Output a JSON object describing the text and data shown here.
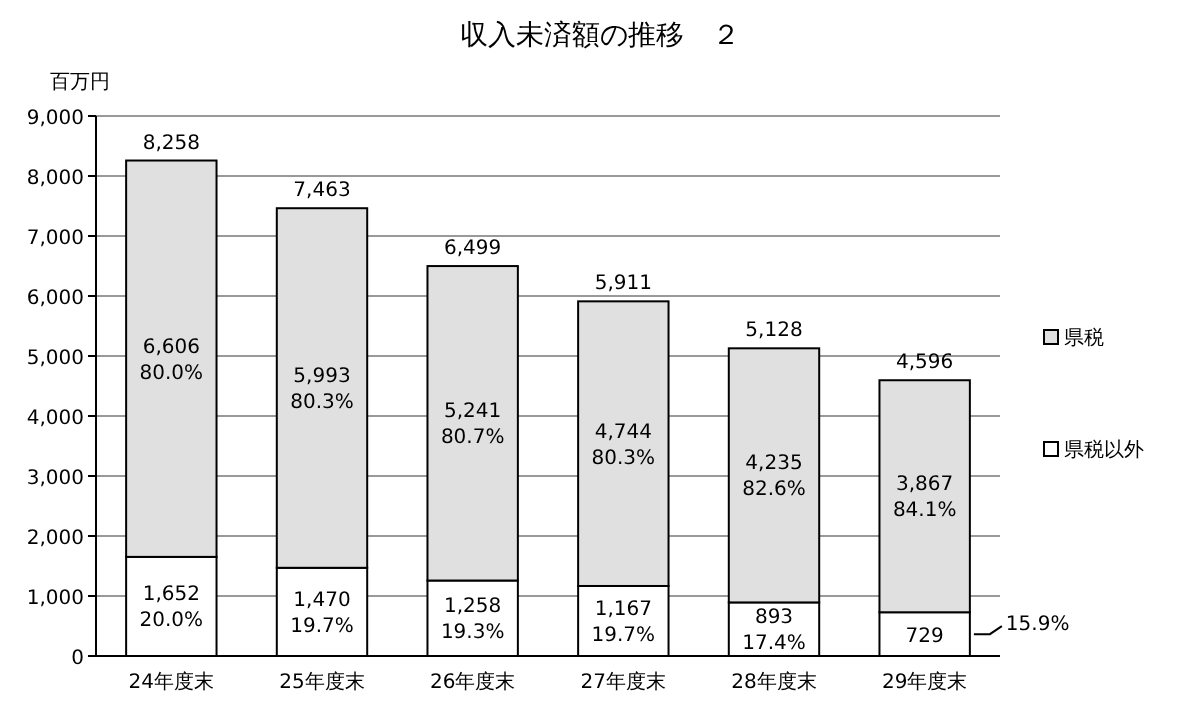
{
  "chart_data": {
    "type": "bar",
    "title": "収入未済額の推移　２",
    "ylabel": "百万円",
    "stacked": true,
    "categories": [
      "24年度末",
      "25年度末",
      "26年度末",
      "27年度末",
      "28年度末",
      "29年度末"
    ],
    "series": [
      {
        "name": "県税以外",
        "color": "#ffffff",
        "values": [
          1652,
          1470,
          1258,
          1167,
          893,
          729
        ],
        "value_labels": [
          "1,652",
          "1,470",
          "1,258",
          "1,167",
          "893",
          "729"
        ]
      },
      {
        "name": "県税",
        "color": "#e0e0e0",
        "values": [
          6606,
          5993,
          5241,
          4744,
          4235,
          3867
        ],
        "value_labels": [
          "6,606",
          "5,993",
          "5,241",
          "4,744",
          "4,235",
          "3,867"
        ]
      }
    ],
    "totals": [
      "8,258",
      "7,463",
      "6,499",
      "5,911",
      "5,128",
      "4,596"
    ],
    "annotations": [
      "20.0%",
      "19.7%",
      "19.3%",
      "19.7%",
      "17.4%",
      "15.9%",
      "80.0%",
      "80.3%",
      "80.7%",
      "80.3%",
      "82.6%",
      "84.1%"
    ],
    "ylim": [
      0,
      9000
    ],
    "yticks": [
      0,
      {
        "value": 1000,
        "label": "1,000"
      },
      {
        "value": 2000,
        "label": "2,000"
      },
      {
        "value": 3000,
        "label": "3,000"
      },
      {
        "value": 4000,
        "label": "4,000"
      },
      {
        "value": 5000,
        "label": "5,000"
      },
      {
        "value": 6000,
        "label": "6,000"
      },
      {
        "value": 7000,
        "label": "7,000"
      },
      {
        "value": 8000,
        "label": "8,000"
      },
      {
        "value": 9000,
        "label": "9,000"
      }
    ],
    "grid": "y",
    "legend": "right"
  }
}
